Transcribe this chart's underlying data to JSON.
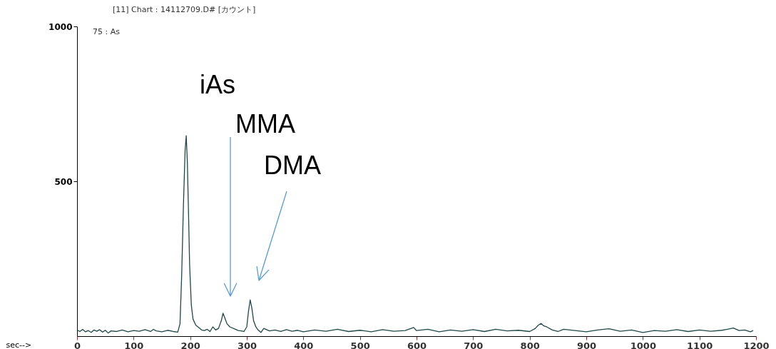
{
  "chart_data": {
    "type": "line",
    "title": "[11] Chart : 14112709.D# [カウント]",
    "xlabel": "sec-->",
    "annotations": [
      "75 : As",
      "iAs",
      "MMA",
      "DMA"
    ],
    "x": [
      0,
      5,
      10,
      15,
      20,
      25,
      30,
      35,
      40,
      45,
      50,
      55,
      60,
      70,
      80,
      90,
      100,
      110,
      120,
      130,
      135,
      140,
      150,
      160,
      170,
      178,
      182,
      185,
      188,
      191,
      193,
      195,
      197,
      199,
      202,
      205,
      210,
      215,
      220,
      225,
      230,
      235,
      240,
      245,
      250,
      255,
      258,
      261,
      265,
      270,
      280,
      285,
      290,
      295,
      300,
      303,
      306,
      309,
      312,
      316,
      320,
      325,
      330,
      340,
      350,
      360,
      370,
      380,
      390,
      400,
      420,
      440,
      460,
      480,
      500,
      520,
      540,
      560,
      580,
      595,
      600,
      620,
      640,
      660,
      680,
      700,
      720,
      740,
      760,
      780,
      800,
      810,
      815,
      820,
      825,
      830,
      840,
      850,
      860,
      880,
      900,
      920,
      940,
      960,
      980,
      1000,
      1020,
      1040,
      1060,
      1080,
      1100,
      1120,
      1140,
      1160,
      1170,
      1180,
      1190,
      1195
    ],
    "series": [
      {
        "color": "#1f4848",
        "values": [
          20,
          15,
          22,
          14,
          18,
          12,
          20,
          16,
          21,
          13,
          19,
          10,
          17,
          15,
          20,
          14,
          18,
          16,
          21,
          15,
          22,
          17,
          14,
          19,
          15,
          13,
          40,
          200,
          420,
          600,
          647,
          560,
          400,
          230,
          100,
          55,
          35,
          28,
          20,
          18,
          22,
          15,
          30,
          20,
          25,
          50,
          74,
          60,
          40,
          30,
          22,
          18,
          17,
          15,
          30,
          80,
          117,
          90,
          50,
          30,
          20,
          12,
          25,
          17,
          20,
          15,
          21,
          16,
          19,
          14,
          20,
          16,
          22,
          15,
          19,
          14,
          21,
          16,
          18,
          28,
          18,
          22,
          14,
          20,
          16,
          21,
          15,
          22,
          17,
          19,
          15,
          25,
          35,
          41,
          33,
          30,
          20,
          15,
          22,
          18,
          14,
          20,
          24,
          16,
          20,
          12,
          18,
          16,
          21,
          15,
          20,
          16,
          19,
          26,
          18,
          20,
          14,
          18
        ]
      }
    ],
    "xlim": [
      0,
      1200
    ],
    "xticks": [
      0,
      100,
      200,
      300,
      400,
      500,
      600,
      700,
      800,
      900,
      1000,
      1100,
      1200
    ],
    "ylim": [
      0,
      1000
    ],
    "yticks": [
      500,
      1000
    ],
    "grid": false,
    "marker": "none",
    "line_style": "solid"
  }
}
